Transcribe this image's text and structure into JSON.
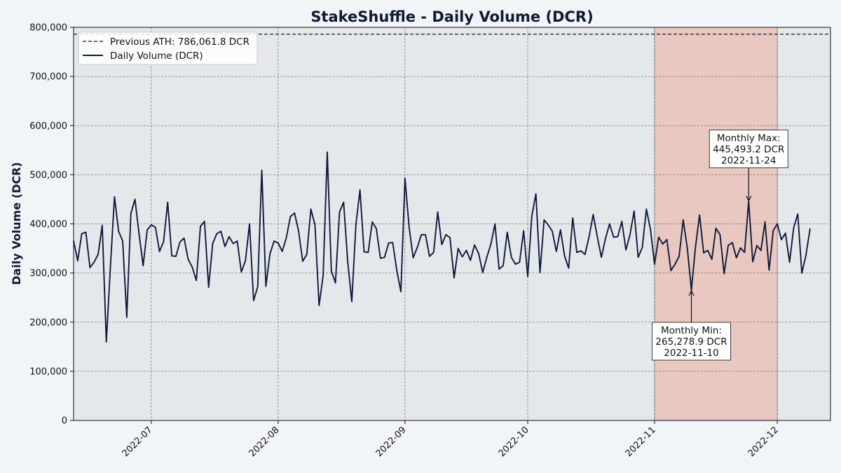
{
  "chart_data": {
    "type": "line",
    "title": "StakeShuffle - Daily Volume (DCR)",
    "xlabel": "",
    "ylabel": "Daily Volume (DCR)",
    "ylim": [
      0,
      800000
    ],
    "xlim": [
      "2022-06-12",
      "2022-12-14"
    ],
    "grid": true,
    "legend_position": "top-left",
    "y_ticks": [
      0,
      100000,
      200000,
      300000,
      400000,
      500000,
      600000,
      700000,
      800000
    ],
    "y_tick_labels": [
      "0",
      "100,000",
      "200,000",
      "300,000",
      "400,000",
      "500,000",
      "600,000",
      "700,000",
      "800,000"
    ],
    "x_ticks": [
      "2022-07-01",
      "2022-08-01",
      "2022-09-01",
      "2022-10-01",
      "2022-11-01",
      "2022-12-01"
    ],
    "x_tick_labels": [
      "2022-07",
      "2022-08",
      "2022-09",
      "2022-10",
      "2022-11",
      "2022-12"
    ],
    "reference_line": {
      "label": "Previous ATH: 786,061.8 DCR",
      "value": 786061.8,
      "color": "#0f1a3d",
      "style": "dashed"
    },
    "highlight_span": {
      "start": "2022-11-01",
      "end": "2022-12-01",
      "color": "#e8c8c0"
    },
    "series": [
      {
        "name": "Daily Volume (DCR)",
        "color": "#0f1a3d",
        "x": [
          "2022-06-12",
          "2022-06-13",
          "2022-06-14",
          "2022-06-15",
          "2022-06-16",
          "2022-06-17",
          "2022-06-18",
          "2022-06-19",
          "2022-06-20",
          "2022-06-21",
          "2022-06-22",
          "2022-06-23",
          "2022-06-24",
          "2022-06-25",
          "2022-06-26",
          "2022-06-27",
          "2022-06-28",
          "2022-06-29",
          "2022-06-30",
          "2022-07-01",
          "2022-07-02",
          "2022-07-03",
          "2022-07-04",
          "2022-07-05",
          "2022-07-06",
          "2022-07-07",
          "2022-07-08",
          "2022-07-09",
          "2022-07-10",
          "2022-07-11",
          "2022-07-12",
          "2022-07-13",
          "2022-07-14",
          "2022-07-15",
          "2022-07-16",
          "2022-07-17",
          "2022-07-18",
          "2022-07-19",
          "2022-07-20",
          "2022-07-21",
          "2022-07-22",
          "2022-07-23",
          "2022-07-24",
          "2022-07-25",
          "2022-07-26",
          "2022-07-27",
          "2022-07-28",
          "2022-07-29",
          "2022-07-30",
          "2022-07-31",
          "2022-08-01",
          "2022-08-02",
          "2022-08-03",
          "2022-08-04",
          "2022-08-05",
          "2022-08-06",
          "2022-08-07",
          "2022-08-08",
          "2022-08-09",
          "2022-08-10",
          "2022-08-11",
          "2022-08-12",
          "2022-08-13",
          "2022-08-14",
          "2022-08-15",
          "2022-08-16",
          "2022-08-17",
          "2022-08-18",
          "2022-08-19",
          "2022-08-20",
          "2022-08-21",
          "2022-08-22",
          "2022-08-23",
          "2022-08-24",
          "2022-08-25",
          "2022-08-26",
          "2022-08-27",
          "2022-08-28",
          "2022-08-29",
          "2022-08-30",
          "2022-08-31",
          "2022-09-01",
          "2022-09-02",
          "2022-09-03",
          "2022-09-04",
          "2022-09-05",
          "2022-09-06",
          "2022-09-07",
          "2022-09-08",
          "2022-09-09",
          "2022-09-10",
          "2022-09-11",
          "2022-09-12",
          "2022-09-13",
          "2022-09-14",
          "2022-09-15",
          "2022-09-16",
          "2022-09-17",
          "2022-09-18",
          "2022-09-19",
          "2022-09-20",
          "2022-09-21",
          "2022-09-22",
          "2022-09-23",
          "2022-09-24",
          "2022-09-25",
          "2022-09-26",
          "2022-09-27",
          "2022-09-28",
          "2022-09-29",
          "2022-09-30",
          "2022-10-01",
          "2022-10-02",
          "2022-10-03",
          "2022-10-04",
          "2022-10-05",
          "2022-10-06",
          "2022-10-07",
          "2022-10-08",
          "2022-10-09",
          "2022-10-10",
          "2022-10-11",
          "2022-10-12",
          "2022-10-13",
          "2022-10-14",
          "2022-10-15",
          "2022-10-16",
          "2022-10-17",
          "2022-10-18",
          "2022-10-19",
          "2022-10-20",
          "2022-10-21",
          "2022-10-22",
          "2022-10-23",
          "2022-10-24",
          "2022-10-25",
          "2022-10-26",
          "2022-10-27",
          "2022-10-28",
          "2022-10-29",
          "2022-10-30",
          "2022-10-31",
          "2022-11-01",
          "2022-11-02",
          "2022-11-03",
          "2022-11-04",
          "2022-11-05",
          "2022-11-06",
          "2022-11-07",
          "2022-11-08",
          "2022-11-09",
          "2022-11-10",
          "2022-11-11",
          "2022-11-12",
          "2022-11-13",
          "2022-11-14",
          "2022-11-15",
          "2022-11-16",
          "2022-11-17",
          "2022-11-18",
          "2022-11-19",
          "2022-11-20",
          "2022-11-21",
          "2022-11-22",
          "2022-11-23",
          "2022-11-24",
          "2022-11-25",
          "2022-11-26",
          "2022-11-27",
          "2022-11-28",
          "2022-11-29",
          "2022-11-30",
          "2022-12-01",
          "2022-12-02",
          "2022-12-03",
          "2022-12-04",
          "2022-12-05",
          "2022-12-06",
          "2022-12-07",
          "2022-12-08",
          "2022-12-09"
        ],
        "values": [
          365000,
          325000,
          380000,
          383000,
          311000,
          322000,
          338000,
          397000,
          160000,
          313000,
          455000,
          385000,
          365000,
          210000,
          421000,
          450000,
          380000,
          315000,
          388000,
          398000,
          393000,
          344000,
          364000,
          444000,
          335000,
          334000,
          363000,
          371000,
          328000,
          312000,
          285000,
          395000,
          405000,
          271000,
          360000,
          380000,
          385000,
          354000,
          374000,
          360000,
          365000,
          302000,
          325000,
          400000,
          244000,
          272000,
          509000,
          273000,
          339000,
          365000,
          361000,
          344000,
          372000,
          415000,
          422000,
          385000,
          324000,
          338000,
          430000,
          398000,
          234000,
          295000,
          546000,
          304000,
          280000,
          424000,
          444000,
          323000,
          242000,
          398000,
          469000,
          343000,
          342000,
          404000,
          390000,
          330000,
          332000,
          361000,
          362000,
          305000,
          262000,
          493000,
          394000,
          331000,
          352000,
          378000,
          378000,
          334000,
          342000,
          424000,
          358000,
          378000,
          372000,
          290000,
          350000,
          333000,
          346000,
          326000,
          357000,
          340000,
          301000,
          332000,
          359000,
          400000,
          308000,
          315000,
          383000,
          332000,
          318000,
          322000,
          386000,
          293000,
          416000,
          461000,
          301000,
          408000,
          398000,
          385000,
          344000,
          388000,
          335000,
          310000,
          412000,
          342000,
          345000,
          338000,
          374000,
          419000,
          374000,
          332000,
          370000,
          400000,
          373000,
          374000,
          405000,
          347000,
          378000,
          426000,
          332000,
          352000,
          430000,
          389000,
          318000,
          373000,
          359000,
          368000,
          305000,
          318000,
          334000,
          408000,
          351000,
          265278.9,
          353000,
          418000,
          341000,
          346000,
          328000,
          391000,
          378000,
          299000,
          356000,
          362000,
          331000,
          351000,
          342000,
          445493.2,
          323000,
          356000,
          346000,
          404000,
          306000,
          386000,
          400000,
          368000,
          381000,
          322000,
          392000,
          420000,
          300000,
          336000,
          390000
        ]
      }
    ],
    "annotations": [
      {
        "lines": [
          "Monthly Max:",
          "445,493.2 DCR",
          "2022-11-24"
        ],
        "x": "2022-11-24",
        "y": 445493.2,
        "box_position": "above"
      },
      {
        "lines": [
          "Monthly Min:",
          "265,278.9 DCR",
          "2022-11-10"
        ],
        "x": "2022-11-10",
        "y": 265278.9,
        "box_position": "below"
      }
    ]
  },
  "colors": {
    "page_background": "#f1f5f7",
    "plot_background": "#e5e8eb",
    "line": "#0f1a3d",
    "grid": "#555555",
    "highlight": "#e8c8c0"
  }
}
